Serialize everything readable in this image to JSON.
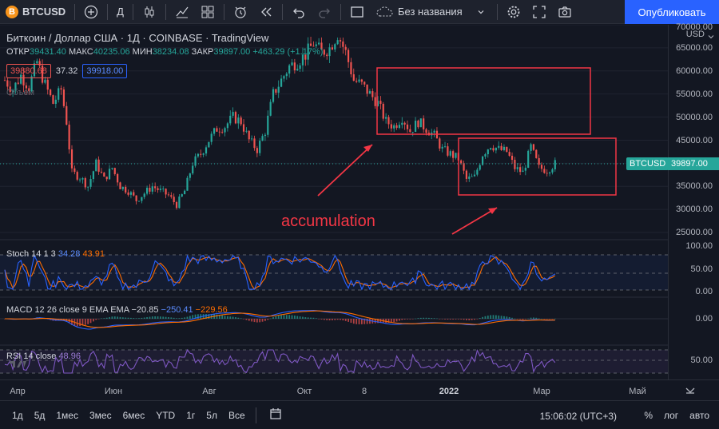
{
  "toolbar": {
    "symbol": "BTCUSD",
    "symbol_logo": "B",
    "interval": "Д",
    "layout_name": "Без названия",
    "publish_label": "Опубликовать",
    "icons": [
      "plus-circle-icon",
      "candles-icon",
      "indicators-icon",
      "layout-grid-icon",
      "alert-icon",
      "replay-icon",
      "undo-icon",
      "redo-icon",
      "square-icon",
      "cloud-icon",
      "chevron-down-icon",
      "settings-icon",
      "fullscreen-icon",
      "camera-icon"
    ]
  },
  "legend": {
    "title": "Биткоин / Доллар США · 1Д · COINBASE · TradingView",
    "open_label": "ОТКР",
    "open": "39431.40",
    "high_label": "МАКС",
    "high": "40235.06",
    "low_label": "МИН",
    "low": "38234.08",
    "close_label": "ЗАКР",
    "close": "39897.00",
    "change": "+463.29 (+1.17%)",
    "bid": "39880.68",
    "spread": "37.32",
    "ask": "39918.00",
    "volume_label": "Объем"
  },
  "price_axis": {
    "currency": "USD",
    "labels": [
      "70000.00",
      "65000.00",
      "60000.00",
      "55000.00",
      "50000.00",
      "45000.00",
      "40000.00",
      "35000.00",
      "30000.00",
      "25000.00"
    ],
    "current_price": "39897.00",
    "symbol_tag": "BTCUSD"
  },
  "annotation": {
    "text": "accumulation",
    "color": "#f23645"
  },
  "indicators": {
    "stoch": {
      "name": "Stoch 14 1 3",
      "k": "34.28",
      "d": "43.91",
      "levels": [
        "100.00",
        "50.00",
        "0.00"
      ]
    },
    "macd": {
      "name": "MACD 12 26 close 9 EMA EMA",
      "hist": "−20.85",
      "macd": "−250.41",
      "signal": "−229.56",
      "levels": [
        "0.00"
      ]
    },
    "rsi": {
      "name": "RSI 14 close",
      "value": "48.96",
      "levels": [
        "50.00"
      ]
    }
  },
  "time_axis": {
    "labels": [
      "Апр",
      "Июн",
      "Авг",
      "Окт",
      "8",
      "2022",
      "Мар",
      "Май"
    ]
  },
  "bottom": {
    "ranges": [
      "1д",
      "5д",
      "1мес",
      "3мес",
      "6мес",
      "YTD",
      "1г",
      "5л",
      "Все"
    ],
    "time": "15:06:02 (UTC+3)",
    "percent": "%",
    "log": "лог",
    "auto": "авто"
  },
  "colors": {
    "up": "#26a69a",
    "down": "#ef5350",
    "accent": "#2962ff",
    "stoch_k": "#2962ff",
    "stoch_d": "#ff6d00",
    "rsi": "#7e57c2"
  },
  "chart_data": {
    "type": "candlestick",
    "title": "Биткоин / Доллар США · 1Д · COINBASE",
    "ylim": [
      25000,
      70000
    ],
    "close_path": [
      [
        0,
        58000
      ],
      [
        3,
        56000
      ],
      [
        6,
        59000
      ],
      [
        9,
        56500
      ],
      [
        12,
        62000
      ],
      [
        15,
        57000
      ],
      [
        18,
        53000
      ],
      [
        21,
        56000
      ],
      [
        23,
        49000
      ],
      [
        25,
        38000
      ],
      [
        28,
        37000
      ],
      [
        31,
        35000
      ],
      [
        34,
        40000
      ],
      [
        37,
        36500
      ],
      [
        40,
        39000
      ],
      [
        43,
        35000
      ],
      [
        46,
        34000
      ],
      [
        49,
        32000
      ],
      [
        52,
        33500
      ],
      [
        55,
        35000
      ],
      [
        58,
        34000
      ],
      [
        61,
        33000
      ],
      [
        64,
        31000
      ],
      [
        67,
        34000
      ],
      [
        70,
        40000
      ],
      [
        73,
        42000
      ],
      [
        76,
        45000
      ],
      [
        79,
        47500
      ],
      [
        82,
        48000
      ],
      [
        85,
        50000
      ],
      [
        88,
        49000
      ],
      [
        91,
        45000
      ],
      [
        94,
        43000
      ],
      [
        97,
        47000
      ],
      [
        100,
        55000
      ],
      [
        103,
        58000
      ],
      [
        106,
        61000
      ],
      [
        109,
        62000
      ],
      [
        112,
        63500
      ],
      [
        115,
        66000
      ],
      [
        118,
        64000
      ],
      [
        121,
        65000
      ],
      [
        124,
        68000
      ],
      [
        127,
        64000
      ],
      [
        130,
        58000
      ],
      [
        133,
        57000
      ],
      [
        136,
        55000
      ],
      [
        139,
        53000
      ],
      [
        142,
        49000
      ],
      [
        145,
        48000
      ],
      [
        148,
        50000
      ],
      [
        151,
        47000
      ],
      [
        154,
        49000
      ],
      [
        157,
        47500
      ],
      [
        160,
        46000
      ],
      [
        163,
        43000
      ],
      [
        166,
        42000
      ],
      [
        169,
        41000
      ],
      [
        172,
        36500
      ],
      [
        175,
        37000
      ],
      [
        178,
        42000
      ],
      [
        181,
        44000
      ],
      [
        184,
        43000
      ],
      [
        187,
        42500
      ],
      [
        190,
        39000
      ],
      [
        193,
        38000
      ],
      [
        196,
        43500
      ],
      [
        199,
        39000
      ],
      [
        202,
        38500
      ],
      [
        205,
        39897
      ]
    ]
  }
}
